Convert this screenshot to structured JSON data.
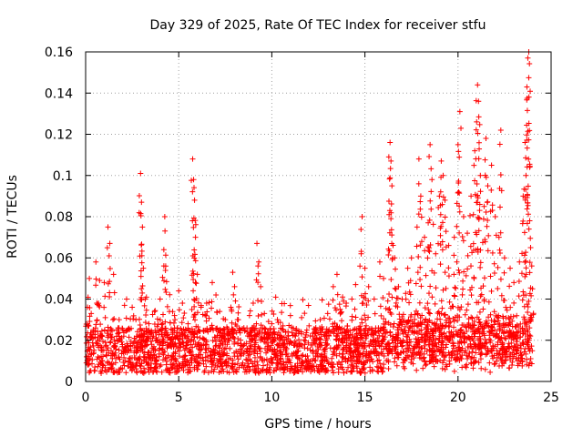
{
  "chart_data": {
    "type": "scatter",
    "title": "Day 329 of 2025, Rate Of TEC Index for receiver stfu",
    "xlabel": "GPS time / hours",
    "ylabel": "ROTI / TECUs",
    "xlim": [
      0,
      25
    ],
    "ylim": [
      0,
      0.16
    ],
    "xticks": [
      0,
      5,
      10,
      15,
      20,
      25
    ],
    "xtick_labels": [
      "0",
      "5",
      "10",
      "15",
      "20",
      "25"
    ],
    "yticks": [
      0,
      0.02,
      0.04,
      0.06,
      0.08,
      0.1,
      0.12,
      0.14,
      0.16
    ],
    "ytick_labels": [
      "0",
      "0.02",
      "0.04",
      "0.06",
      "0.08",
      "0.1",
      "0.12",
      "0.14",
      "0.16"
    ],
    "grid": true,
    "marker": "+",
    "marker_color": "#ff0000",
    "series": [
      {
        "name": "ROTI",
        "points": [
          [
            0.05,
            0.012
          ],
          [
            0.1,
            0.036
          ],
          [
            0.2,
            0.05
          ],
          [
            0.3,
            0.033
          ],
          [
            0.55,
            0.058
          ],
          [
            0.6,
            0.038
          ],
          [
            0.75,
            0.049
          ],
          [
            0.9,
            0.022
          ],
          [
            1.0,
            0.048
          ],
          [
            1.2,
            0.075
          ],
          [
            1.3,
            0.067
          ],
          [
            1.5,
            0.052
          ],
          [
            1.8,
            0.03
          ],
          [
            2.0,
            0.025
          ],
          [
            2.2,
            0.04
          ],
          [
            2.5,
            0.036
          ],
          [
            2.7,
            0.03
          ],
          [
            2.95,
            0.101
          ],
          [
            3.0,
            0.087
          ],
          [
            3.05,
            0.075
          ],
          [
            3.1,
            0.055
          ],
          [
            3.2,
            0.04
          ],
          [
            3.4,
            0.028
          ],
          [
            3.7,
            0.034
          ],
          [
            4.0,
            0.04
          ],
          [
            4.2,
            0.064
          ],
          [
            4.25,
            0.08
          ],
          [
            4.3,
            0.056
          ],
          [
            4.5,
            0.034
          ],
          [
            4.8,
            0.03
          ],
          [
            5.0,
            0.044
          ],
          [
            5.2,
            0.038
          ],
          [
            5.5,
            0.028
          ],
          [
            5.75,
            0.108
          ],
          [
            5.8,
            0.098
          ],
          [
            5.85,
            0.088
          ],
          [
            5.9,
            0.07
          ],
          [
            6.0,
            0.052
          ],
          [
            6.2,
            0.036
          ],
          [
            6.5,
            0.038
          ],
          [
            6.8,
            0.048
          ],
          [
            7.0,
            0.042
          ],
          [
            7.2,
            0.034
          ],
          [
            7.5,
            0.03
          ],
          [
            7.8,
            0.036
          ],
          [
            7.9,
            0.053
          ],
          [
            8.0,
            0.046
          ],
          [
            8.2,
            0.03
          ],
          [
            8.5,
            0.026
          ],
          [
            8.8,
            0.032
          ],
          [
            9.0,
            0.038
          ],
          [
            9.2,
            0.067
          ],
          [
            9.3,
            0.058
          ],
          [
            9.4,
            0.046
          ],
          [
            9.6,
            0.033
          ],
          [
            10.0,
            0.028
          ],
          [
            10.3,
            0.03
          ],
          [
            10.6,
            0.027
          ],
          [
            11.0,
            0.032
          ],
          [
            11.3,
            0.025
          ],
          [
            11.6,
            0.031
          ],
          [
            12.0,
            0.027
          ],
          [
            12.3,
            0.024
          ],
          [
            12.6,
            0.03
          ],
          [
            13.0,
            0.033
          ],
          [
            13.3,
            0.046
          ],
          [
            13.5,
            0.052
          ],
          [
            13.8,
            0.041
          ],
          [
            14.0,
            0.038
          ],
          [
            14.3,
            0.04
          ],
          [
            14.5,
            0.047
          ],
          [
            14.8,
            0.062
          ],
          [
            14.85,
            0.08
          ],
          [
            15.0,
            0.055
          ],
          [
            15.2,
            0.046
          ],
          [
            15.5,
            0.04
          ],
          [
            15.8,
            0.058
          ],
          [
            16.0,
            0.05
          ],
          [
            16.3,
            0.081
          ],
          [
            16.35,
            0.116
          ],
          [
            16.4,
            0.107
          ],
          [
            16.45,
            0.095
          ],
          [
            16.6,
            0.06
          ],
          [
            16.8,
            0.046
          ],
          [
            17.0,
            0.04
          ],
          [
            17.3,
            0.055
          ],
          [
            17.5,
            0.06
          ],
          [
            17.8,
            0.075
          ],
          [
            17.9,
            0.108
          ],
          [
            18.0,
            0.09
          ],
          [
            18.2,
            0.07
          ],
          [
            18.4,
            0.077
          ],
          [
            18.5,
            0.115
          ],
          [
            18.6,
            0.098
          ],
          [
            18.8,
            0.062
          ],
          [
            19.0,
            0.09
          ],
          [
            19.1,
            0.107
          ],
          [
            19.2,
            0.1
          ],
          [
            19.3,
            0.088
          ],
          [
            19.5,
            0.066
          ],
          [
            19.8,
            0.07
          ],
          [
            20.0,
            0.115
          ],
          [
            20.1,
            0.131
          ],
          [
            20.3,
            0.08
          ],
          [
            20.5,
            0.072
          ],
          [
            20.7,
            0.09
          ],
          [
            20.9,
            0.112
          ],
          [
            21.0,
            0.126
          ],
          [
            21.05,
            0.144
          ],
          [
            21.1,
            0.136
          ],
          [
            21.2,
            0.1
          ],
          [
            21.4,
            0.085
          ],
          [
            21.5,
            0.118
          ],
          [
            21.6,
            0.095
          ],
          [
            21.8,
            0.105
          ],
          [
            22.0,
            0.08
          ],
          [
            22.2,
            0.07
          ],
          [
            22.3,
            0.122
          ],
          [
            22.5,
            0.06
          ],
          [
            22.8,
            0.055
          ],
          [
            23.0,
            0.048
          ],
          [
            23.3,
            0.058
          ],
          [
            23.5,
            0.09
          ],
          [
            23.6,
            0.116
          ],
          [
            23.65,
            0.1
          ],
          [
            23.7,
            0.143
          ],
          [
            23.75,
            0.157
          ],
          [
            23.8,
            0.16
          ],
          [
            23.85,
            0.078
          ],
          [
            23.9,
            0.065
          ],
          [
            24.0,
            0.045
          ]
        ]
      }
    ]
  }
}
